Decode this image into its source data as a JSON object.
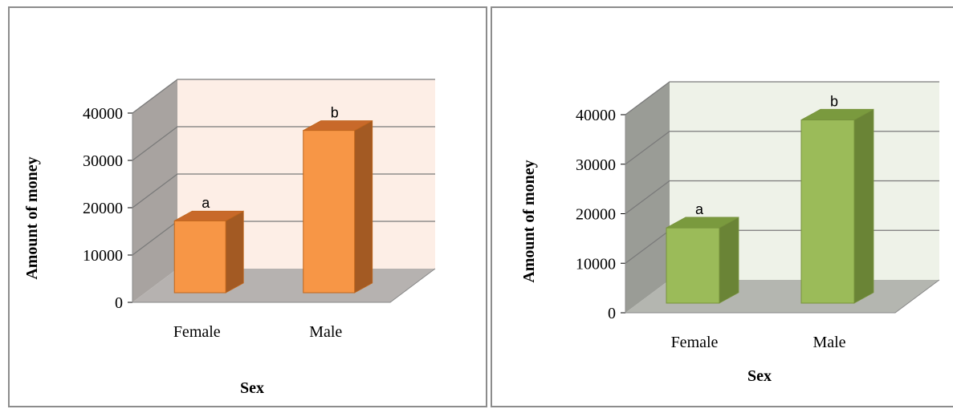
{
  "chart_data": [
    {
      "type": "bar",
      "style": "3d-column",
      "categories": [
        "Female",
        "Male"
      ],
      "values": [
        15200,
        34300
      ],
      "data_labels": [
        "a",
        "b"
      ],
      "xlabel": "Sex",
      "ylabel": "Amount of money",
      "yticks": [
        "0",
        "10000",
        "20000",
        "30000",
        "40000"
      ],
      "ylim": [
        0,
        40000
      ],
      "grid": true,
      "colors": {
        "bar_front": "#f79646",
        "bar_top": "#c8692a",
        "bar_side": "#a35a23",
        "bar_edge": "#c0661c",
        "back_wall": "#fdeee6",
        "side_wall": "#a8a3a0",
        "floor": "#b6b2b0",
        "grid": "#7a7a7a"
      }
    },
    {
      "type": "bar",
      "style": "3d-column",
      "categories": [
        "Female",
        "Male"
      ],
      "values": [
        15200,
        37000
      ],
      "data_labels": [
        "a",
        "b"
      ],
      "xlabel": "Sex",
      "ylabel": "Amount of money",
      "yticks": [
        "0",
        "10000",
        "20000",
        "30000",
        "40000"
      ],
      "ylim": [
        0,
        40000
      ],
      "grid": true,
      "colors": {
        "bar_front": "#9bbb59",
        "bar_top": "#7a9a3e",
        "bar_side": "#6a8436",
        "bar_edge": "#77933c",
        "back_wall": "#eef2e8",
        "side_wall": "#9a9c96",
        "floor": "#b4b6b0",
        "grid": "#7a7a7a"
      }
    }
  ]
}
